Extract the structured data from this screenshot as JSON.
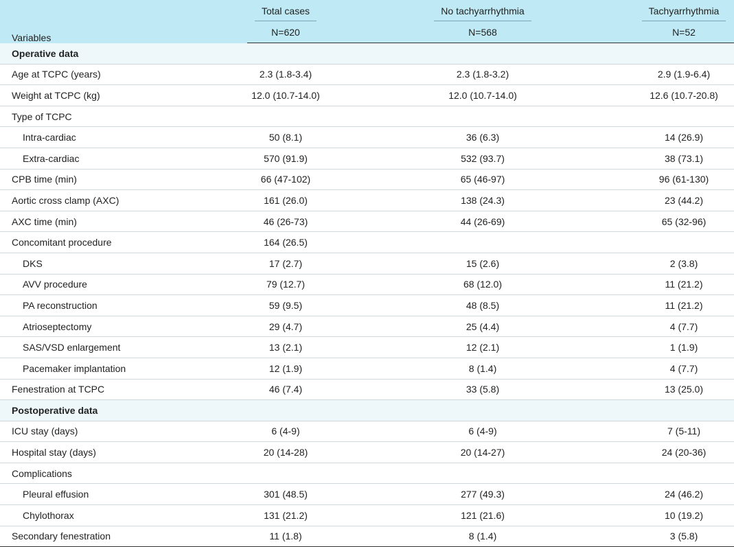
{
  "header": {
    "variables": "Variables",
    "columns": [
      {
        "name": "Total cases",
        "n": "N=620"
      },
      {
        "name": "No tachyarrhythmia",
        "n": "N=568"
      },
      {
        "name": "Tachyarrhythmia",
        "n": "N=52"
      }
    ]
  },
  "sections": [
    {
      "title": "Operative data",
      "rows": [
        {
          "label": "Age at TCPC (years)",
          "values": [
            "2.3 (1.8-3.4)",
            "2.3 (1.8-3.2)",
            "2.9 (1.9-6.4)"
          ]
        },
        {
          "label": "Weight at TCPC (kg)",
          "values": [
            "12.0 (10.7-14.0)",
            "12.0 (10.7-14.0)",
            "12.6 (10.7-20.8)"
          ]
        },
        {
          "label": "Type of TCPC",
          "children": [
            {
              "label": "Intra-cardiac",
              "values": [
                "50 (8.1)",
                "36 (6.3)",
                "14 (26.9)"
              ]
            },
            {
              "label": "Extra-cardiac",
              "values": [
                "570 (91.9)",
                "532 (93.7)",
                "38 (73.1)"
              ]
            }
          ]
        },
        {
          "label": "CPB time (min)",
          "values": [
            "66 (47-102)",
            "65 (46-97)",
            "96 (61-130)"
          ]
        },
        {
          "label": "Aortic cross clamp (AXC)",
          "values": [
            "161 (26.0)",
            "138 (24.3)",
            "23 (44.2)"
          ]
        },
        {
          "label": "AXC time (min)",
          "values": [
            "46 (26-73)",
            "44 (26-69)",
            "65 (32-96)"
          ]
        },
        {
          "label": "Concomitant procedure",
          "values": [
            "164 (26.5)"
          ],
          "children": [
            {
              "label": "DKS",
              "values": [
                "17 (2.7)",
                "15 (2.6)",
                "2 (3.8)"
              ]
            },
            {
              "label": "AVV procedure",
              "values": [
                "79 (12.7)",
                "68 (12.0)",
                "11 (21.2)"
              ]
            },
            {
              "label": "PA reconstruction",
              "values": [
                "59 (9.5)",
                "48 (8.5)",
                "11 (21.2)"
              ]
            },
            {
              "label": "Atrioseptectomy",
              "values": [
                "29 (4.7)",
                "25 (4.4)",
                "4 (7.7)"
              ]
            },
            {
              "label": "SAS/VSD enlargement",
              "values": [
                "13 (2.1)",
                "12 (2.1)",
                "1 (1.9)"
              ]
            },
            {
              "label": "Pacemaker implantation",
              "values": [
                "12 (1.9)",
                "8 (1.4)",
                "4 (7.7)"
              ]
            }
          ]
        },
        {
          "label": "Fenestration at TCPC",
          "values": [
            "46 (7.4)",
            "33 (5.8)",
            "13 (25.0)"
          ]
        }
      ]
    },
    {
      "title": "Postoperative data",
      "rows": [
        {
          "label": "ICU stay (days)",
          "values": [
            "6 (4-9)",
            "6 (4-9)",
            "7 (5-11)"
          ]
        },
        {
          "label": "Hospital stay (days)",
          "values": [
            "20 (14-28)",
            "20 (14-27)",
            "24 (20-36)"
          ]
        },
        {
          "label": "Complications",
          "children": [
            {
              "label": "Pleural effusion",
              "values": [
                "301 (48.5)",
                "277 (49.3)",
                "24 (46.2)"
              ]
            },
            {
              "label": "Chylothorax",
              "values": [
                "131 (21.2)",
                "121 (21.6)",
                "10 (19.2)"
              ]
            }
          ]
        },
        {
          "label": "Secondary fenestration",
          "values": [
            "11 (1.8)",
            "8 (1.4)",
            "3 (5.8)"
          ]
        }
      ]
    }
  ]
}
